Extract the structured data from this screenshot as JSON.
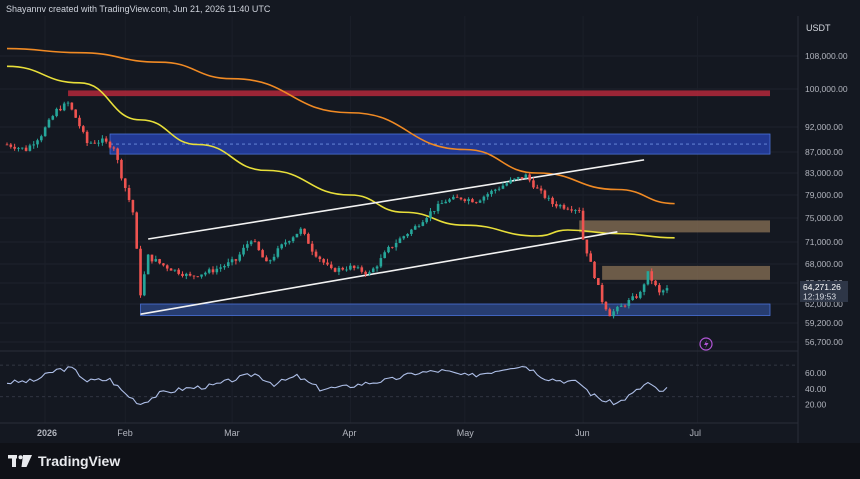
{
  "header": {
    "caption": "Shayannv created with TradingView.com, Jun 21, 2026 11:40 UTC",
    "currency": "USDT"
  },
  "brand": {
    "logo_text": "TradingView",
    "logo_icon": "tradingview-logo-icon"
  },
  "colors": {
    "up": "#26a69a",
    "down": "#ef5350",
    "ema_fast": "#e8df3a",
    "ema_slow": "#f08a24",
    "resistance_red": "#b3283a",
    "supply_blue": "#2440a8",
    "demand_tan": "#8a7256",
    "support_blue": "#2d4a8c",
    "rsi": "#aebfe8",
    "price_badge": "#2e3647"
  },
  "chart_data": {
    "type": "candlestick",
    "price_axis": {
      "min": 55500,
      "max": 113000,
      "ticks": [
        "108,000.00",
        "100,000.00",
        "92,000.00",
        "87,000.00",
        "83,000.00",
        "79,000.00",
        "75,000.00",
        "71,000.00",
        "68,000.00",
        "65,000.00",
        "62,000.00",
        "59,200.00",
        "56,700.00"
      ]
    },
    "current_price": {
      "value": "64,271.26",
      "countdown": "12:19:53"
    },
    "time_axis": [
      "2026",
      "Feb",
      "Mar",
      "Apr",
      "May",
      "Jun",
      "Jul"
    ],
    "date_range": [
      "2026-01-01",
      "2026-07-20"
    ],
    "price_path": [
      [
        "2026-01-01",
        88500
      ],
      [
        "2026-01-06",
        87500
      ],
      [
        "2026-01-10",
        90500
      ],
      [
        "2026-01-14",
        95500
      ],
      [
        "2026-01-17",
        97000
      ],
      [
        "2026-01-19",
        94000
      ],
      [
        "2026-01-22",
        88800
      ],
      [
        "2026-01-26",
        89200
      ],
      [
        "2026-01-29",
        88000
      ],
      [
        "2026-01-31",
        82500
      ],
      [
        "2026-02-03",
        76000
      ],
      [
        "2026-02-05",
        63500
      ],
      [
        "2026-02-07",
        69000
      ],
      [
        "2026-02-12",
        67500
      ],
      [
        "2026-02-18",
        66000
      ],
      [
        "2026-02-24",
        67000
      ],
      [
        "2026-03-02",
        68500
      ],
      [
        "2026-03-06",
        71500
      ],
      [
        "2026-03-10",
        68000
      ],
      [
        "2026-03-15",
        71000
      ],
      [
        "2026-03-19",
        73000
      ],
      [
        "2026-03-22",
        70000
      ],
      [
        "2026-03-27",
        67000
      ],
      [
        "2026-04-01",
        67500
      ],
      [
        "2026-04-06",
        66500
      ],
      [
        "2026-04-11",
        70000
      ],
      [
        "2026-04-15",
        72000
      ],
      [
        "2026-04-18",
        73500
      ],
      [
        "2026-04-22",
        76000
      ],
      [
        "2026-04-26",
        78000
      ],
      [
        "2026-04-30",
        78500
      ],
      [
        "2026-05-04",
        78000
      ],
      [
        "2026-05-09",
        80000
      ],
      [
        "2026-05-13",
        81500
      ],
      [
        "2026-05-17",
        82500
      ],
      [
        "2026-05-20",
        80000
      ],
      [
        "2026-05-24",
        77500
      ],
      [
        "2026-05-27",
        77000
      ],
      [
        "2026-05-31",
        76500
      ],
      [
        "2026-06-01",
        71500
      ],
      [
        "2026-06-03",
        68000
      ],
      [
        "2026-06-06",
        62500
      ],
      [
        "2026-06-08",
        60500
      ],
      [
        "2026-06-12",
        62000
      ],
      [
        "2026-06-16",
        63500
      ],
      [
        "2026-06-18",
        66500
      ],
      [
        "2026-06-21",
        63500
      ],
      [
        "2026-06-23",
        64271
      ]
    ],
    "ema_200": [
      [
        "2026-01-01",
        109800
      ],
      [
        "2026-01-20",
        108800
      ],
      [
        "2026-02-10",
        106500
      ],
      [
        "2026-03-01",
        102500
      ],
      [
        "2026-04-01",
        95000
      ],
      [
        "2026-05-01",
        87500
      ],
      [
        "2026-05-20",
        83000
      ],
      [
        "2026-06-10",
        80000
      ],
      [
        "2026-06-25",
        77500
      ]
    ],
    "ema_100": [
      [
        "2026-01-01",
        105500
      ],
      [
        "2026-01-20",
        101500
      ],
      [
        "2026-02-05",
        93500
      ],
      [
        "2026-02-20",
        88500
      ],
      [
        "2026-03-10",
        83500
      ],
      [
        "2026-04-01",
        79000
      ],
      [
        "2026-04-15",
        76000
      ],
      [
        "2026-05-01",
        73800
      ],
      [
        "2026-05-20",
        72000
      ],
      [
        "2026-05-28",
        73000
      ],
      [
        "2026-06-10",
        72400
      ],
      [
        "2026-06-25",
        71700
      ]
    ],
    "zones": [
      {
        "kind": "resistance",
        "from": "2026-01-17",
        "to": "2026-07-20",
        "low": 98500,
        "high": 99700
      },
      {
        "kind": "supply",
        "from": "2026-01-28",
        "to": "2026-07-20",
        "low": 86600,
        "high": 90600
      },
      {
        "kind": "demand",
        "from": "2026-05-31",
        "to": "2026-07-20",
        "low": 72600,
        "high": 74600
      },
      {
        "kind": "demand",
        "from": "2026-06-06",
        "to": "2026-07-20",
        "low": 65500,
        "high": 67700
      },
      {
        "kind": "support",
        "from": "2026-02-05",
        "to": "2026-07-20",
        "low": 60300,
        "high": 62000
      }
    ],
    "channel_lines": [
      {
        "from": [
          "2026-02-07",
          71500
        ],
        "to": [
          "2026-06-17",
          85500
        ]
      },
      {
        "from": [
          "2026-02-05",
          60500
        ],
        "to": [
          "2026-06-10",
          72700
        ]
      }
    ],
    "rsi": {
      "ticks": [
        "60.00",
        "40.00",
        "20.00"
      ],
      "range": [
        12,
        74
      ],
      "path": [
        [
          "2026-01-01",
          48
        ],
        [
          "2026-01-08",
          50
        ],
        [
          "2026-01-14",
          64
        ],
        [
          "2026-01-18",
          66
        ],
        [
          "2026-01-22",
          50
        ],
        [
          "2026-01-28",
          52
        ],
        [
          "2026-02-01",
          34
        ],
        [
          "2026-02-05",
          21
        ],
        [
          "2026-02-10",
          34
        ],
        [
          "2026-02-16",
          40
        ],
        [
          "2026-02-24",
          44
        ],
        [
          "2026-03-03",
          54
        ],
        [
          "2026-03-07",
          59
        ],
        [
          "2026-03-12",
          46
        ],
        [
          "2026-03-18",
          56
        ],
        [
          "2026-03-24",
          40
        ],
        [
          "2026-03-30",
          42
        ],
        [
          "2026-04-05",
          47
        ],
        [
          "2026-04-12",
          52
        ],
        [
          "2026-04-18",
          60
        ],
        [
          "2026-04-25",
          63
        ],
        [
          "2026-05-02",
          56
        ],
        [
          "2026-05-08",
          62
        ],
        [
          "2026-05-13",
          68
        ],
        [
          "2026-05-17",
          69
        ],
        [
          "2026-05-22",
          54
        ],
        [
          "2026-05-27",
          50
        ],
        [
          "2026-05-31",
          48
        ],
        [
          "2026-06-03",
          34
        ],
        [
          "2026-06-07",
          24
        ],
        [
          "2026-06-10",
          22
        ],
        [
          "2026-06-14",
          34
        ],
        [
          "2026-06-18",
          48
        ],
        [
          "2026-06-21",
          36
        ],
        [
          "2026-06-23",
          40
        ]
      ]
    }
  }
}
